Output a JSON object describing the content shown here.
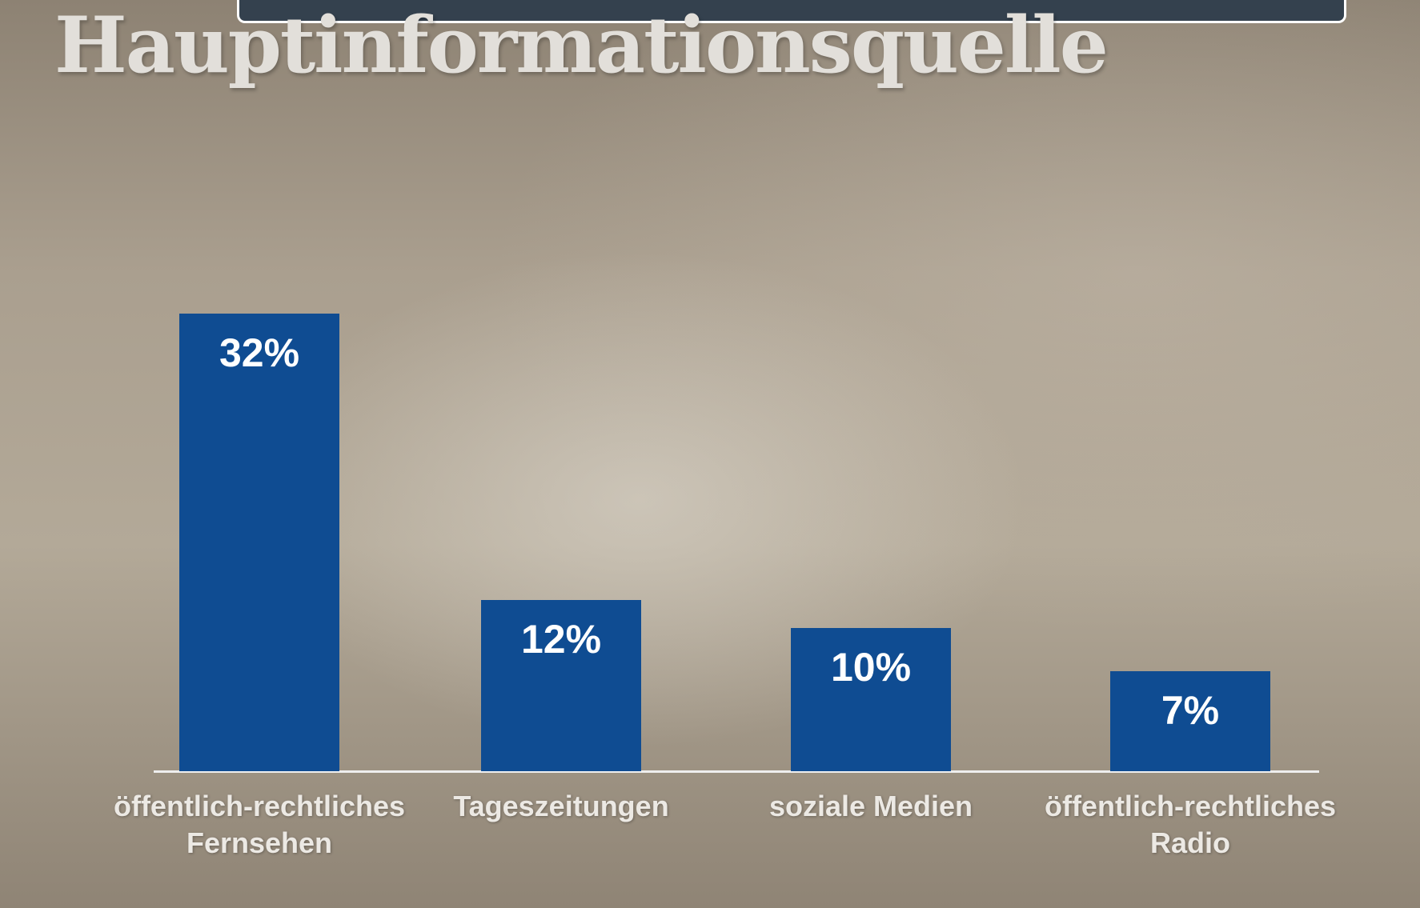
{
  "chart_data": {
    "type": "bar",
    "title": "Hauptinformationsquelle",
    "categories": [
      "öffentlich-rechtliches Fernsehen",
      "Tageszeitungen",
      "soziale Medien",
      "öffentlich-rechtliches Radio"
    ],
    "values": [
      32,
      12,
      10,
      7
    ],
    "value_labels": [
      "32%",
      "12%",
      "10%",
      "7%"
    ],
    "color": "#0f4c92"
  }
}
